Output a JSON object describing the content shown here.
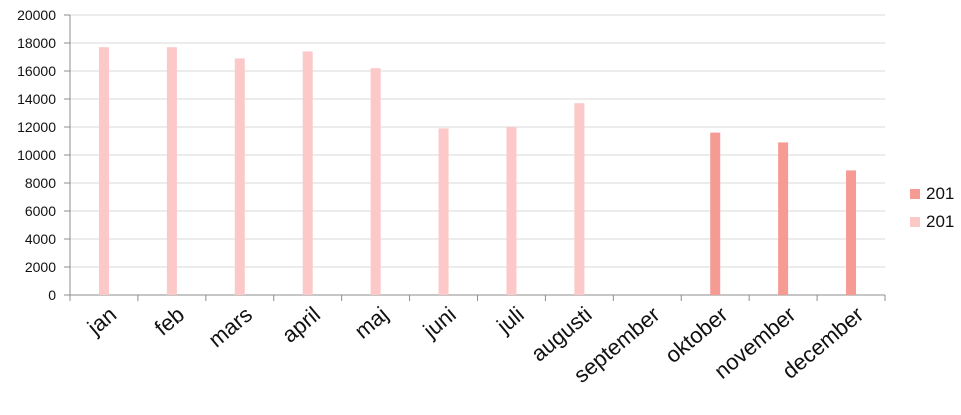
{
  "chart_data": {
    "type": "bar",
    "title": "",
    "xlabel": "",
    "ylabel": "",
    "categories": [
      "jan",
      "feb",
      "mars",
      "april",
      "maj",
      "juni",
      "juli",
      "augusti",
      "september",
      "oktober",
      "november",
      "december"
    ],
    "ylim": [
      0,
      20000
    ],
    "yticks": [
      0,
      2000,
      4000,
      6000,
      8000,
      10000,
      12000,
      14000,
      16000,
      18000,
      20000
    ],
    "grid": true,
    "legend_position": "right",
    "series": [
      {
        "name": "201",
        "color": "#f59b94",
        "values": [
          null,
          null,
          null,
          null,
          null,
          null,
          null,
          null,
          null,
          11600,
          10900,
          8900
        ]
      },
      {
        "name": "201",
        "color": "#fcc8c8",
        "values": [
          17700,
          17700,
          16900,
          17400,
          16200,
          11900,
          12000,
          13700,
          null,
          null,
          null,
          null
        ]
      }
    ]
  }
}
